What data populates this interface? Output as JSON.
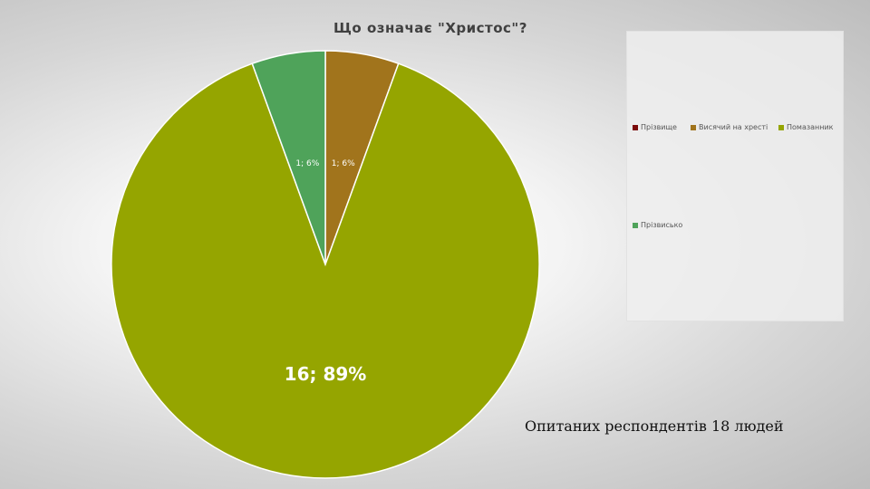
{
  "chart_data": {
    "type": "pie",
    "title": "Що означає \"Христос\"?",
    "categories": [
      "Прізвище",
      "Висячий на хресті",
      "Помазанник",
      "Прізвисько"
    ],
    "values": [
      0,
      1,
      16,
      1
    ],
    "percents": [
      0,
      6,
      89,
      6
    ],
    "colors": [
      "#7b0a0a",
      "#a1741c",
      "#95a500",
      "#4fa35a"
    ],
    "data_labels": [
      "",
      "1; 6%",
      "16; 89%",
      "1; 6%"
    ],
    "legend_position": "right"
  },
  "note": "Опитаних респондентів 18 людей"
}
